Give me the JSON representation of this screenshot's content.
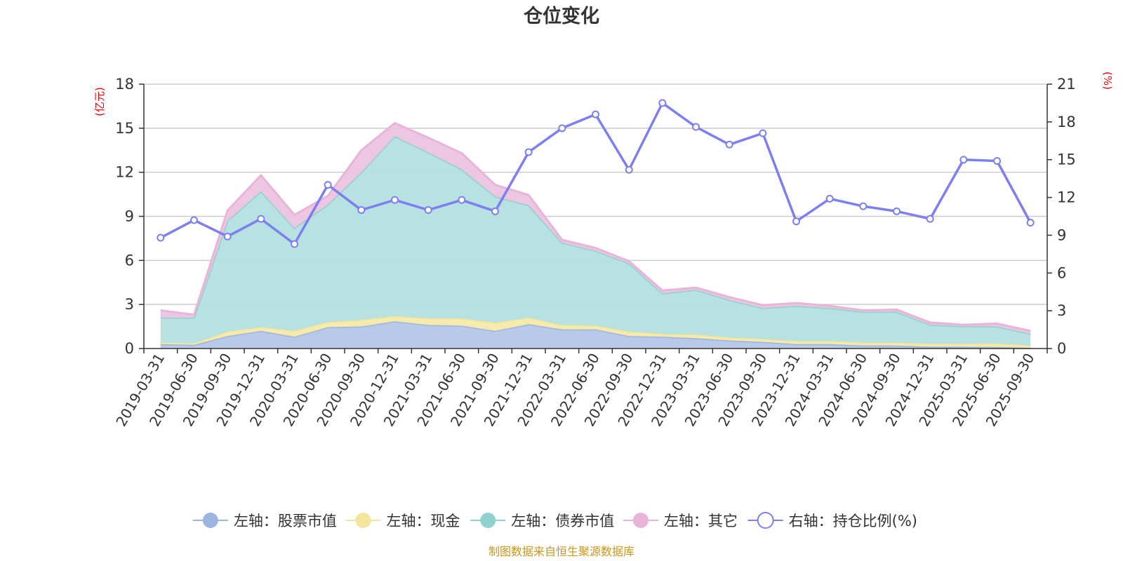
{
  "chart_data": {
    "type": "area",
    "title": "仓位变化",
    "left_unit": "(亿元)",
    "right_unit": "(%)",
    "source": "制图数据来自恒生聚源数据库",
    "x": [
      "2019-03-31",
      "2019-06-30",
      "2019-09-30",
      "2019-12-31",
      "2020-03-31",
      "2020-06-30",
      "2020-09-30",
      "2020-12-31",
      "2021-03-31",
      "2021-06-30",
      "2021-09-30",
      "2021-12-31",
      "2022-03-31",
      "2022-06-30",
      "2022-09-30",
      "2022-12-31",
      "2023-03-31",
      "2023-06-30",
      "2023-09-30",
      "2023-12-31",
      "2024-03-31",
      "2024-06-30",
      "2024-09-30",
      "2024-12-31",
      "2025-03-31",
      "2025-06-30",
      "2025-09-30"
    ],
    "left_axis": {
      "min": 0,
      "max": 18,
      "ticks": [
        0,
        3,
        6,
        9,
        12,
        15,
        18
      ]
    },
    "right_axis": {
      "min": 0,
      "max": 21,
      "ticks": [
        0,
        3,
        6,
        9,
        12,
        15,
        18,
        21
      ]
    },
    "stacked_series": [
      {
        "name": "左轴：股票市值",
        "color": "#9bb6e0",
        "fill": "#b4c6e8",
        "values": [
          0.3,
          0.25,
          0.85,
          1.2,
          0.8,
          1.45,
          1.5,
          1.85,
          1.6,
          1.55,
          1.2,
          1.65,
          1.3,
          1.3,
          0.85,
          0.8,
          0.7,
          0.55,
          0.45,
          0.3,
          0.3,
          0.2,
          0.2,
          0.12,
          0.12,
          0.1,
          0.05
        ]
      },
      {
        "name": "左轴：现金",
        "color": "#f5e49c",
        "fill": "#f7e9a9",
        "values": [
          0.1,
          0.1,
          0.3,
          0.25,
          0.4,
          0.35,
          0.45,
          0.35,
          0.45,
          0.5,
          0.55,
          0.45,
          0.3,
          0.25,
          0.3,
          0.2,
          0.25,
          0.2,
          0.2,
          0.2,
          0.2,
          0.2,
          0.2,
          0.2,
          0.2,
          0.25,
          0.15
        ]
      },
      {
        "name": "左轴：债券市值",
        "color": "#8fd2d0",
        "fill": "#b4e0df",
        "values": [
          1.7,
          1.75,
          7.55,
          9.25,
          7.0,
          8.0,
          10.05,
          12.25,
          11.3,
          10.15,
          8.6,
          7.65,
          5.6,
          5.1,
          4.65,
          2.75,
          3.05,
          2.55,
          2.1,
          2.4,
          2.25,
          2.1,
          2.1,
          1.3,
          1.2,
          1.15,
          0.8
        ]
      },
      {
        "name": "左轴：其它",
        "color": "#e8b4d8",
        "fill": "#ecc4df",
        "values": [
          0.5,
          0.2,
          0.7,
          1.1,
          0.9,
          0.6,
          1.5,
          0.9,
          1.0,
          1.1,
          0.8,
          0.7,
          0.2,
          0.2,
          0.15,
          0.2,
          0.15,
          0.2,
          0.2,
          0.2,
          0.15,
          0.1,
          0.15,
          0.15,
          0.1,
          0.2,
          0.2
        ]
      }
    ],
    "line_series": {
      "name": "右轴：持仓比例(%)",
      "color": "#7b7ff0",
      "values": [
        8.8,
        10.2,
        8.9,
        10.3,
        8.3,
        13.0,
        11.0,
        11.8,
        11.0,
        11.8,
        10.9,
        15.6,
        17.5,
        18.6,
        14.2,
        19.5,
        17.6,
        16.2,
        17.1,
        10.1,
        11.9,
        11.3,
        10.9,
        10.3,
        15.0,
        14.9,
        10.0
      ]
    },
    "legend": [
      {
        "label": "左轴：股票市值",
        "color": "#9bb6e0",
        "marker": "filled"
      },
      {
        "label": "左轴：现金",
        "color": "#f5e49c",
        "marker": "filled"
      },
      {
        "label": "左轴：债券市值",
        "color": "#8fd2d0",
        "marker": "filled"
      },
      {
        "label": "左轴：其它",
        "color": "#e8b4d8",
        "marker": "filled"
      },
      {
        "label": "右轴：持仓比例(%)",
        "color": "#7b7ff0",
        "marker": "hollow"
      }
    ]
  }
}
